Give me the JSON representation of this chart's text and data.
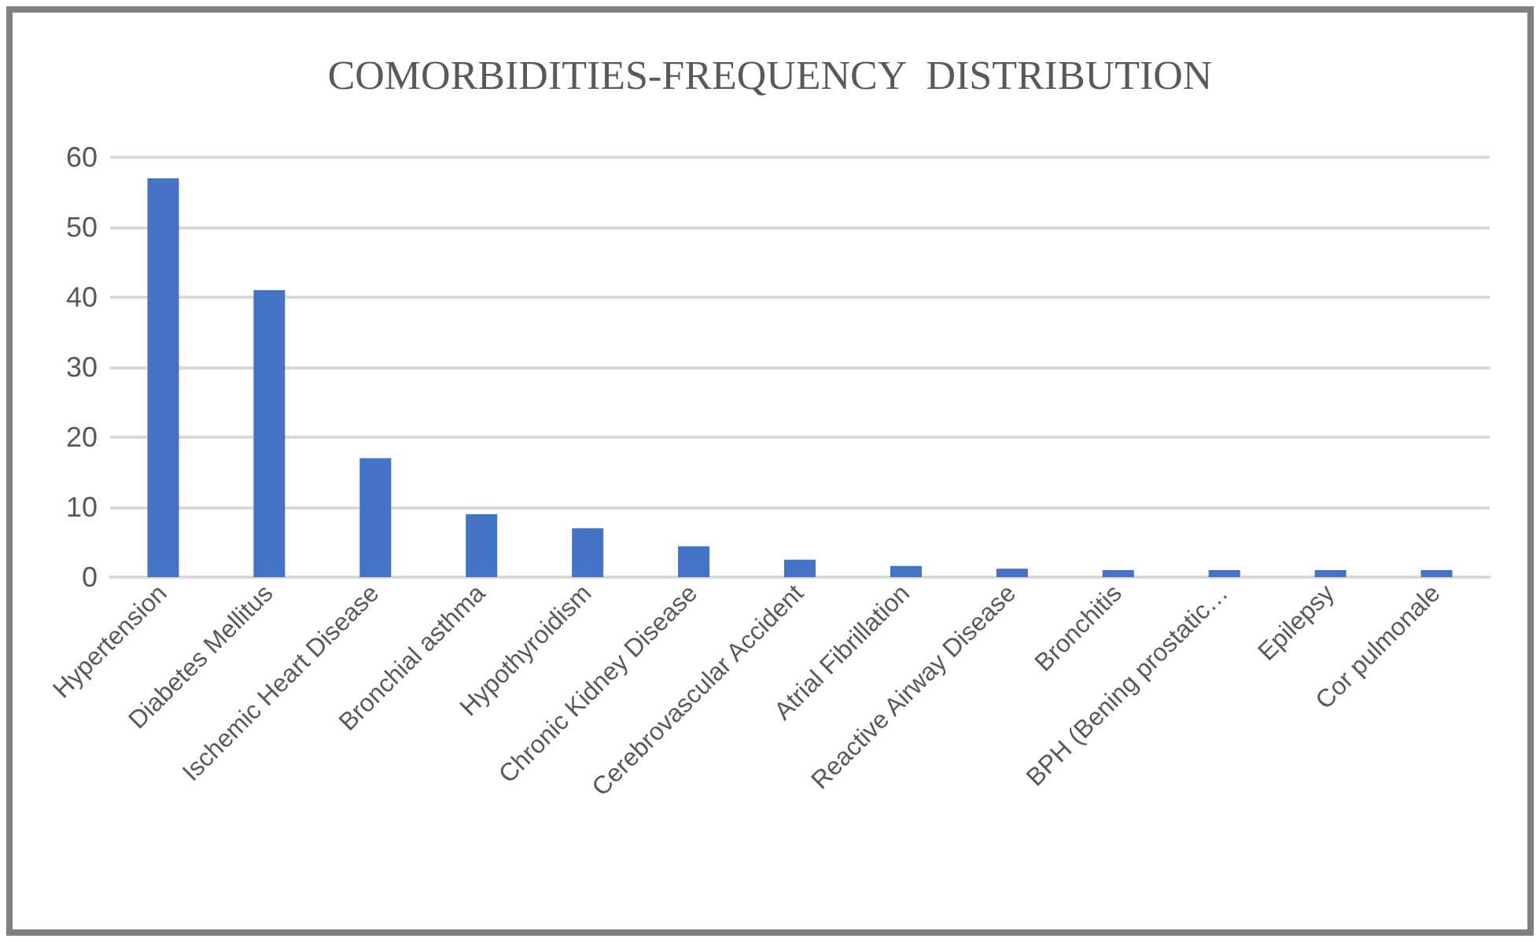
{
  "chart_data": {
    "type": "bar",
    "title": "COMORBIDITIES-FREQUENCY  DISTRIBUTION",
    "categories": [
      "Hypertension",
      "Diabetes Mellitus",
      "Ischemic Heart Disease",
      "Bronchial asthma",
      "Hypothyroidism",
      "Chronic Kidney Disease",
      "Cerebrovascular Accident",
      "Atrial Fibrillation",
      "Reactive Airway Disease",
      "Bronchitis",
      "BPH (Bening prostatic…",
      "Epilepsy",
      "Cor pulmonale"
    ],
    "values": [
      57,
      41,
      17,
      9,
      7,
      4.4,
      2.5,
      1.6,
      1.2,
      1,
      1,
      1,
      1
    ],
    "color": "#4472c4",
    "ylim": [
      0,
      60
    ],
    "yticks": [
      0,
      10,
      20,
      30,
      40,
      50,
      60
    ],
    "grid": "y"
  }
}
